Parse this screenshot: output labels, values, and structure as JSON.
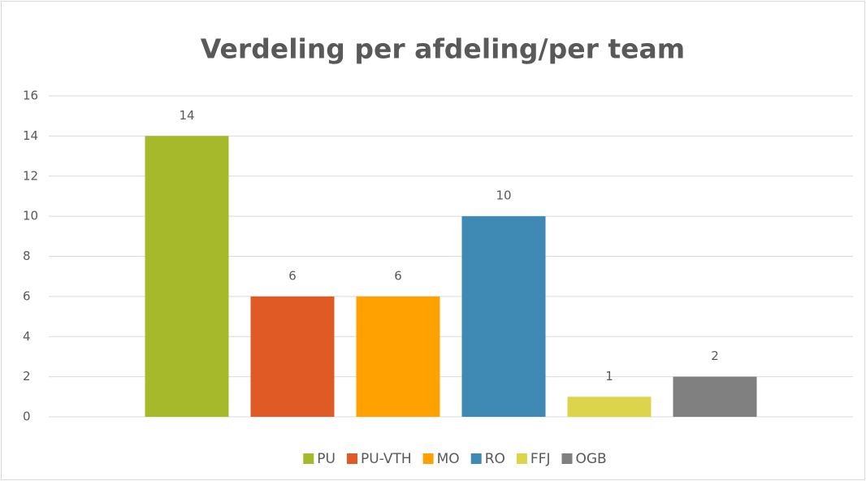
{
  "chart_data": {
    "type": "bar",
    "title": "Verdeling per afdeling/per team",
    "series": [
      {
        "name": "PU",
        "color": "#a5b92a",
        "values": [
          14
        ]
      },
      {
        "name": "PU-VTH",
        "color": "#e05a26",
        "values": [
          6
        ]
      },
      {
        "name": "MO",
        "color": "#ffa100",
        "values": [
          6
        ]
      },
      {
        "name": "RO",
        "color": "#3f8ab5",
        "values": [
          10
        ]
      },
      {
        "name": "FFJ",
        "color": "#dcd54c",
        "values": [
          1
        ]
      },
      {
        "name": "OGB",
        "color": "#808080",
        "values": [
          2
        ]
      }
    ],
    "ylim": [
      0,
      16
    ],
    "yticks": [
      0,
      2,
      4,
      6,
      8,
      10,
      12,
      14,
      16
    ],
    "grid": true,
    "legend": "bottom"
  }
}
